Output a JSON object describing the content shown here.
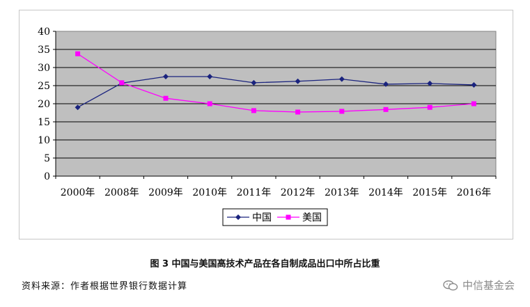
{
  "chart_data": {
    "type": "line",
    "categories": [
      "2000年",
      "2008年",
      "2009年",
      "2010年",
      "2011年",
      "2012年",
      "2013年",
      "2014年",
      "2015年",
      "2016年"
    ],
    "series": [
      {
        "name": "中国",
        "color": "#1a237e",
        "marker": "diamond",
        "values": [
          19,
          25.7,
          27.5,
          27.5,
          25.8,
          26.2,
          26.8,
          25.4,
          25.6,
          25.2
        ]
      },
      {
        "name": "美国",
        "color": "#ff00ff",
        "marker": "square",
        "values": [
          33.8,
          25.8,
          21.5,
          20,
          18.1,
          17.7,
          17.9,
          18.4,
          19,
          20
        ]
      }
    ],
    "yticks": [
      "0",
      "5",
      "10",
      "15",
      "20",
      "25",
      "30",
      "35",
      "40"
    ],
    "ylim": [
      0,
      40
    ],
    "grid": true,
    "plot_background": "#bfbfbf",
    "legend_position": "bottom-center"
  },
  "caption": "图 3 中国与美国高技术产品在各自制成品出口中所占比重",
  "source": "资料来源：作者根据世界银行数据计算",
  "watermark": {
    "icon": "wechat-icon",
    "text": "中信基金会"
  }
}
